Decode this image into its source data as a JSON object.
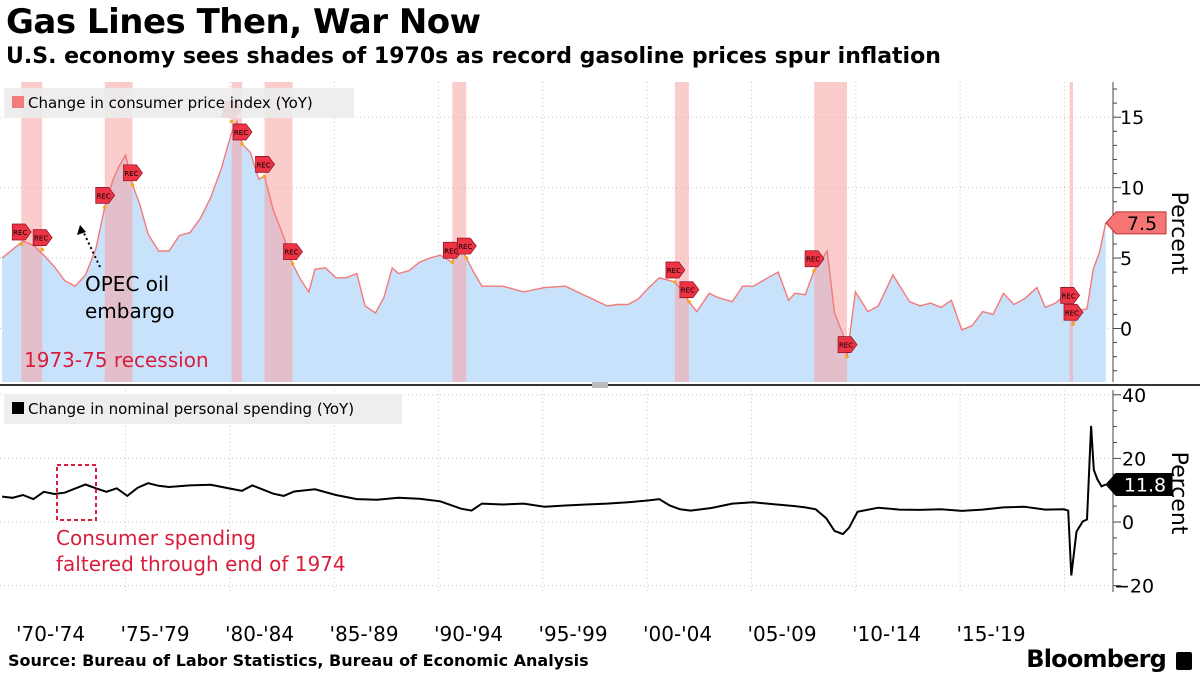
{
  "header": {
    "title": "Gas Lines Then, War Now",
    "subtitle": "U.S. economy sees shades of 1970s as record gasoline prices spur inflation"
  },
  "footer": {
    "source": "Source: Bureau of Labor Statistics, Bureau of Economic Analysis",
    "brand": "Bloomberg"
  },
  "colors": {
    "cpi_fill": "#c9e2fb",
    "cpi_line": "#f37a7a",
    "recession_band": "#f5a3a3",
    "annotation_red": "#d81e3c",
    "marker_red": "#ee3344",
    "spending_line": "#000000"
  },
  "x_tick_labels": [
    "'70-'74",
    "'75-'79",
    "'80-'84",
    "'85-'89",
    "'90-'94",
    "'95-'99",
    "'00-'04",
    "'05-'09",
    "'10-'14",
    "'15-'19"
  ],
  "chart_data": [
    {
      "type": "area",
      "legend": "Change in consumer price index (YoY)",
      "ylabel": "Percent",
      "ylim": [
        -3.8,
        17.5
      ],
      "yticks": [
        0,
        5,
        10,
        15
      ],
      "x_range": [
        1968.9,
        2022.2
      ],
      "last_value": 7.5,
      "last_value_label": "7.5",
      "marker_label": "REC",
      "recessions": [
        [
          1969.92,
          1970.92
        ],
        [
          1973.92,
          1975.25
        ],
        [
          1980.0,
          1980.5
        ],
        [
          1981.58,
          1982.92
        ],
        [
          1990.58,
          1991.25
        ],
        [
          2001.25,
          2001.92
        ],
        [
          2007.92,
          2009.5
        ],
        [
          2020.17,
          2020.33
        ]
      ],
      "x": [
        1969.0,
        1969.5,
        1970.0,
        1970.5,
        1971.0,
        1971.5,
        1972.0,
        1972.5,
        1973.0,
        1973.5,
        1973.92,
        1974.3,
        1974.6,
        1974.92,
        1975.25,
        1975.6,
        1976.0,
        1976.5,
        1977.0,
        1977.5,
        1978.0,
        1978.5,
        1979.0,
        1979.5,
        1980.0,
        1980.25,
        1980.5,
        1980.9,
        1981.3,
        1981.58,
        1982.0,
        1982.5,
        1982.92,
        1983.3,
        1983.7,
        1984.0,
        1984.5,
        1985.0,
        1985.5,
        1986.0,
        1986.4,
        1986.9,
        1987.3,
        1987.7,
        1988.0,
        1988.5,
        1989.0,
        1989.5,
        1990.0,
        1990.58,
        1990.9,
        1991.25,
        1991.6,
        1992.0,
        1993.0,
        1994.0,
        1995.0,
        1996.0,
        1997.0,
        1998.0,
        1998.5,
        1999.0,
        1999.5,
        2000.0,
        2000.5,
        2001.0,
        2001.25,
        2001.6,
        2001.92,
        2002.3,
        2002.9,
        2003.3,
        2004.0,
        2004.5,
        2005.0,
        2005.7,
        2006.2,
        2006.7,
        2007.0,
        2007.5,
        2007.92,
        2008.55,
        2008.9,
        2009.3,
        2009.5,
        2009.9,
        2010.5,
        2011.0,
        2011.7,
        2012.5,
        2013.0,
        2013.5,
        2014.0,
        2014.5,
        2015.0,
        2015.5,
        2016.0,
        2016.5,
        2017.0,
        2017.5,
        2018.0,
        2018.6,
        2019.0,
        2019.5,
        2020.0,
        2020.17,
        2020.33,
        2020.7,
        2021.0,
        2021.3,
        2021.6,
        2021.9
      ],
      "values": [
        5.0,
        5.6,
        6.2,
        5.9,
        5.2,
        4.4,
        3.4,
        3.0,
        3.8,
        5.7,
        8.6,
        10.5,
        11.5,
        12.3,
        10.2,
        8.8,
        6.7,
        5.5,
        5.5,
        6.6,
        6.8,
        7.8,
        9.3,
        11.3,
        13.9,
        14.7,
        13.1,
        12.5,
        10.6,
        10.8,
        8.4,
        6.5,
        4.6,
        3.5,
        2.6,
        4.2,
        4.3,
        3.6,
        3.6,
        3.9,
        1.6,
        1.1,
        2.2,
        4.3,
        3.9,
        4.1,
        4.7,
        5.0,
        5.2,
        4.7,
        6.2,
        5.0,
        4.0,
        3.0,
        3.0,
        2.6,
        2.9,
        3.0,
        2.3,
        1.6,
        1.7,
        1.7,
        2.1,
        2.9,
        3.6,
        3.4,
        3.3,
        2.7,
        1.9,
        1.2,
        2.5,
        2.2,
        1.9,
        3.0,
        3.0,
        3.6,
        4.0,
        2.0,
        2.5,
        2.4,
        4.1,
        5.5,
        1.1,
        -0.4,
        -2.0,
        2.6,
        1.2,
        1.6,
        3.8,
        1.9,
        1.6,
        1.8,
        1.5,
        2.0,
        -0.1,
        0.2,
        1.2,
        1.0,
        2.5,
        1.7,
        2.1,
        2.9,
        1.5,
        1.8,
        2.5,
        1.5,
        0.3,
        1.3,
        1.4,
        4.2,
        5.4,
        7.5
      ],
      "rec_markers": [
        [
          1969.92,
          6.0
        ],
        [
          1970.92,
          5.6
        ],
        [
          1973.92,
          8.6
        ],
        [
          1975.25,
          10.2
        ],
        [
          1980.0,
          14.7
        ],
        [
          1980.5,
          13.1
        ],
        [
          1981.58,
          10.8
        ],
        [
          1982.92,
          4.6
        ],
        [
          1990.58,
          4.7
        ],
        [
          1991.25,
          5.0
        ],
        [
          2001.25,
          3.3
        ],
        [
          2001.92,
          1.9
        ],
        [
          2007.92,
          4.1
        ],
        [
          2009.5,
          -2.0
        ],
        [
          2020.17,
          1.5
        ],
        [
          2020.33,
          0.3
        ]
      ],
      "annotations": {
        "opec_line1": "OPEC oil",
        "opec_line2": "embargo",
        "recession_label": "1973-75 recession"
      }
    },
    {
      "type": "line",
      "legend": "Change in nominal personal spending (YoY)",
      "ylabel": "Percent",
      "ylim": [
        -22,
        41.5
      ],
      "yticks": [
        -20,
        0,
        20,
        40
      ],
      "x_range": [
        1968.9,
        2022.2
      ],
      "last_value": 11.8,
      "last_value_label": "11.8",
      "x": [
        1969.0,
        1969.5,
        1970.0,
        1970.5,
        1971.0,
        1971.5,
        1972.0,
        1972.5,
        1973.0,
        1973.5,
        1974.0,
        1974.5,
        1975.0,
        1975.5,
        1976.0,
        1976.5,
        1977.0,
        1978.0,
        1979.0,
        1980.0,
        1980.5,
        1981.0,
        1981.5,
        1982.0,
        1982.5,
        1983.0,
        1984.0,
        1985.0,
        1986.0,
        1987.0,
        1988.0,
        1989.0,
        1990.0,
        1991.0,
        1991.5,
        1992.0,
        1993.0,
        1994.0,
        1995.0,
        1996.0,
        1997.0,
        1998.0,
        1999.0,
        2000.0,
        2000.5,
        2001.0,
        2001.5,
        2002.0,
        2003.0,
        2004.0,
        2005.0,
        2006.0,
        2007.0,
        2007.5,
        2008.0,
        2008.5,
        2008.9,
        2009.3,
        2009.6,
        2010.0,
        2011.0,
        2012.0,
        2013.0,
        2014.0,
        2015.0,
        2016.0,
        2017.0,
        2018.0,
        2019.0,
        2019.9,
        2020.1,
        2020.25,
        2020.5,
        2020.8,
        2021.0,
        2021.2,
        2021.33,
        2021.5,
        2021.7,
        2021.9
      ],
      "values": [
        8.0,
        7.6,
        8.5,
        7.2,
        9.5,
        8.8,
        9.2,
        10.5,
        11.8,
        10.6,
        9.5,
        10.6,
        8.2,
        10.8,
        12.2,
        11.4,
        11.0,
        11.5,
        11.7,
        10.4,
        9.8,
        11.5,
        10.2,
        8.9,
        8.2,
        9.6,
        10.3,
        8.5,
        7.2,
        7.0,
        7.6,
        7.3,
        6.5,
        4.2,
        3.6,
        5.8,
        5.5,
        5.8,
        4.8,
        5.2,
        5.5,
        5.8,
        6.2,
        6.8,
        7.2,
        5.2,
        4.0,
        3.6,
        4.4,
        5.8,
        6.2,
        5.6,
        5.0,
        4.6,
        4.0,
        1.2,
        -2.8,
        -3.8,
        -1.8,
        3.2,
        4.5,
        3.9,
        3.8,
        4.0,
        3.5,
        3.9,
        4.6,
        4.8,
        3.9,
        4.0,
        3.6,
        -16.8,
        -3.0,
        0.2,
        0.8,
        30.2,
        16.4,
        13.4,
        11.2,
        11.8
      ],
      "annotations": {
        "spending_line1": "Consumer spending",
        "spending_line2": "faltered through end of 1974"
      }
    }
  ]
}
